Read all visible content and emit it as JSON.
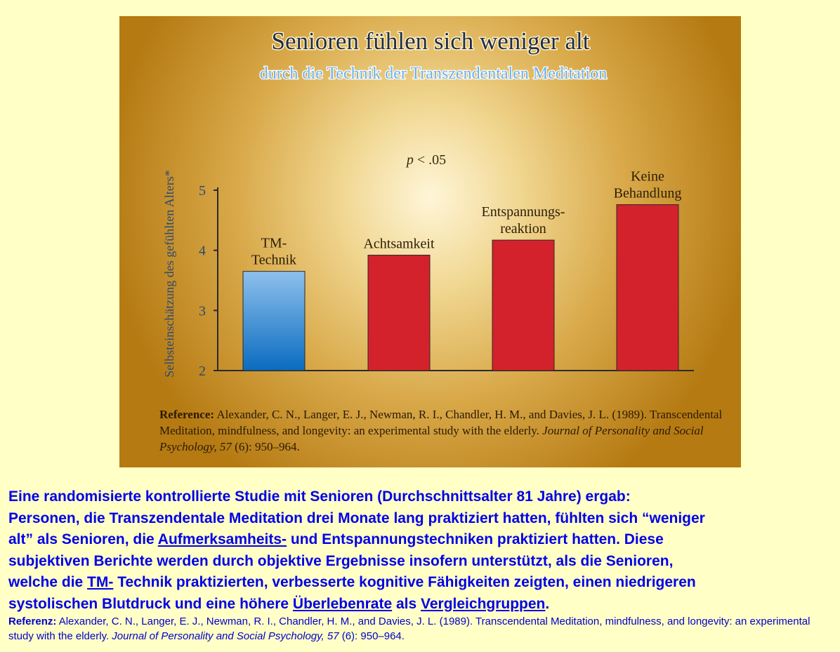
{
  "chart_data": {
    "type": "bar",
    "title": "Senioren fühlen sich weniger alt",
    "subtitle": "durch die Technik der Transzendentalen Meditation",
    "ylabel": "Selbsteinschätzung des gefühlten Alters*",
    "xlabel": "",
    "annotation": "p < .05",
    "ylim": [
      2,
      5
    ],
    "yticks": [
      "2",
      "3",
      "4",
      "5"
    ],
    "categories": [
      [
        "TM-",
        "Technik"
      ],
      [
        "Achtsamkeit"
      ],
      [
        "Entspannungs-",
        "reaktion"
      ],
      [
        "Keine",
        "Behandlung"
      ]
    ],
    "values": [
      3.65,
      3.92,
      4.17,
      4.76
    ],
    "bar_colors": [
      "#3f8fd6",
      "#d3222b",
      "#d3222b",
      "#d3222b"
    ],
    "grid": false,
    "legend": "none"
  },
  "reference": {
    "label": "Reference:",
    "authors": "Alexander, C. N., Langer, E. J., Newman, R. I., Chandler, H. M., and Davies, J. L. (1989). Transcendental Meditation, mindfulness, and longevity: an experimental study with the elderly.",
    "journal": "Journal of Personality and Social Psychology, 57",
    "pages": "(6): 950–964."
  },
  "summary": {
    "line1": "Eine randomisierte kontrollierte Studie mit Senioren (Durchschnittsalter 81 Jahre) ergab:",
    "line2": "Personen, die Transzendentale Meditation drei Monate lang praktiziert hatten, fühlten sich “weniger",
    "line3_a": "alt” als Senioren, die ",
    "line3_u": "Aufmerksamheits-",
    "line3_b": " und Entspannungstechniken praktiziert hatten. Diese",
    "line4": "subjektiven Berichte werden durch objektive Ergebnisse insofern unterstützt, als die Senioren,",
    "line5_a": "welche die ",
    "line5_u": "TM-",
    "line5_b": " Technik praktizierten, verbesserte kognitive Fähigkeiten zeigten, einen niedrigeren",
    "line6_a": "systolischen Blutdruck und eine höhere ",
    "line6_u1": "Überlebenrate",
    "line6_b": " als ",
    "line6_u2": "Vergleichgruppen",
    "line6_c": "."
  },
  "footer_reference": {
    "label": "Referenz:",
    "text": " Alexander, C. N., Langer, E. J., Newman, R. I., Chandler, H. M., and Davies, J. L. (1989). Transcendental Meditation, mindfulness, and longevity: an experimental study with the elderly. ",
    "journal": "Journal of Personality and Social Psychology, 57",
    "pages": " (6): 950–964."
  }
}
